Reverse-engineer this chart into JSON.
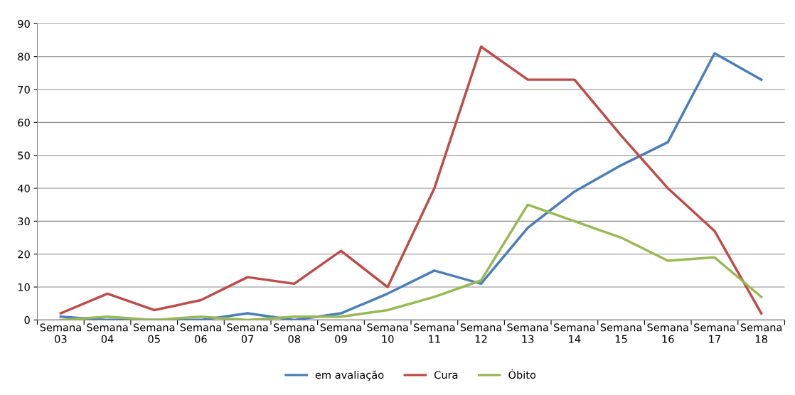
{
  "chart_data": {
    "type": "line",
    "categories": [
      "Semana\n03",
      "Semana\n04",
      "Semana\n05",
      "Semana\n06",
      "Semana\n07",
      "Semana\n08",
      "Semana\n09",
      "Semana\n10",
      "Semana\n11",
      "Semana\n12",
      "Semana\n13",
      "Semana\n14",
      "Semana\n15",
      "Semana\n16",
      "Semana\n17",
      "Semana\n18"
    ],
    "series": [
      {
        "name": "em avaliação",
        "color": "#4a7ebb",
        "values": [
          1,
          0,
          0,
          0,
          2,
          0,
          2,
          8,
          15,
          11,
          28,
          39,
          47,
          54,
          81,
          73
        ]
      },
      {
        "name": "Cura",
        "color": "#be4b48",
        "values": [
          2,
          8,
          3,
          6,
          13,
          11,
          21,
          10,
          40,
          83,
          73,
          73,
          56,
          40,
          27,
          2
        ]
      },
      {
        "name": "Óbito",
        "color": "#98b954",
        "values": [
          0,
          1,
          0,
          1,
          0,
          1,
          1,
          3,
          7,
          12,
          35,
          30,
          25,
          18,
          19,
          7
        ]
      }
    ],
    "ylim": [
      0,
      90
    ],
    "yticks": [
      0,
      10,
      20,
      30,
      40,
      50,
      60,
      70,
      80,
      90
    ],
    "grid": "y",
    "legend": "bottom",
    "marker": "none",
    "line_style": "solid"
  }
}
